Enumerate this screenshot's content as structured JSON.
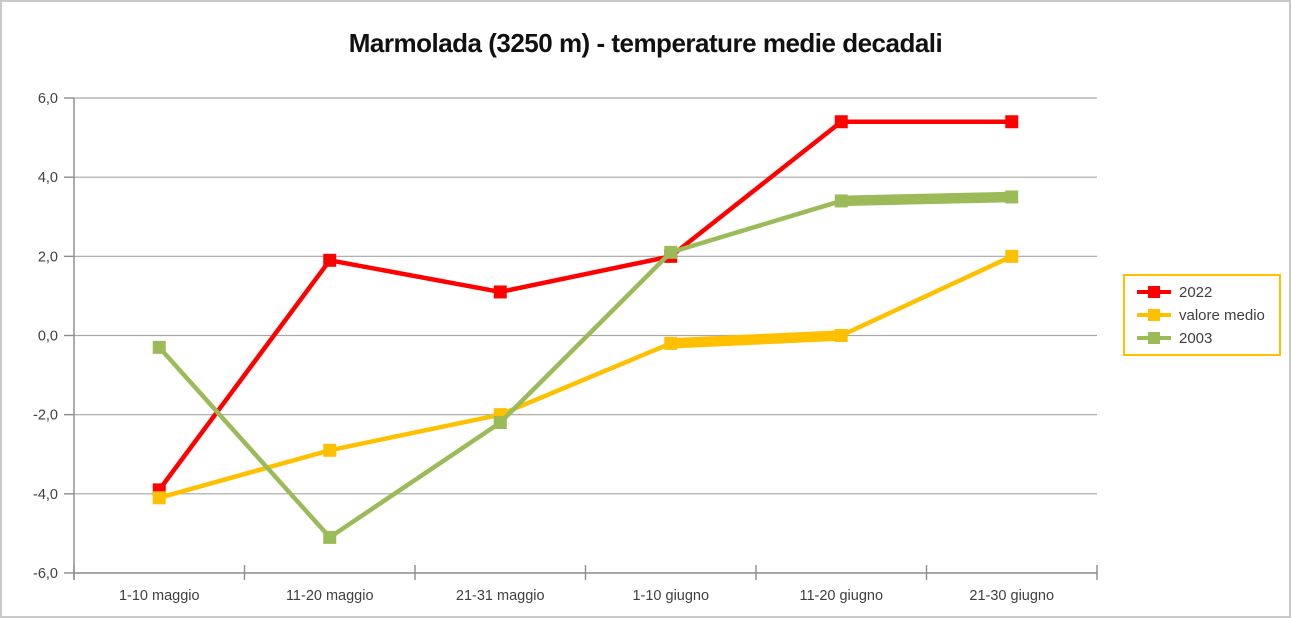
{
  "chart_data": {
    "type": "line",
    "title": "Marmolada (3250 m) - temperature medie decadali",
    "categories": [
      "1-10 maggio",
      "11-20 maggio",
      "21-31 maggio",
      "1-10 giugno",
      "11-20 giugno",
      "21-30 giugno"
    ],
    "series": [
      {
        "name": "2022",
        "color": "#FF0000",
        "values": [
          -3.9,
          1.9,
          1.1,
          2.0,
          5.4,
          5.4
        ]
      },
      {
        "name": "valore medio",
        "color": "#FFC000",
        "values": [
          -4.1,
          -2.9,
          -2.0,
          -0.2,
          0.0,
          2.0
        ]
      },
      {
        "name": "2003",
        "color": "#9BBB59",
        "values": [
          -0.3,
          -5.1,
          -2.2,
          2.1,
          3.4,
          3.5
        ]
      }
    ],
    "ylim": [
      -6,
      6
    ],
    "ytick_step": 2,
    "ytick_labels": [
      "6,0",
      "4,0",
      "2,0",
      "0,0",
      "-2,0",
      "-4,0",
      "-6,0"
    ],
    "grid": true,
    "marker": "square",
    "legend_position": "right",
    "emphasis_segments": [
      {
        "series": "valore medio",
        "from_index": 3,
        "to_index": 4
      },
      {
        "series": "2003",
        "from_index": 4,
        "to_index": 5
      }
    ]
  },
  "colors": {
    "background": "#FFFFFF",
    "chart_border": "#C9C9C9",
    "gridline": "#A6A6A6",
    "axis": "#8C8C8C",
    "tick_text": "#404040",
    "title_text": "#111111",
    "legend_border": "#FFC000",
    "legend_text": "#404040"
  }
}
